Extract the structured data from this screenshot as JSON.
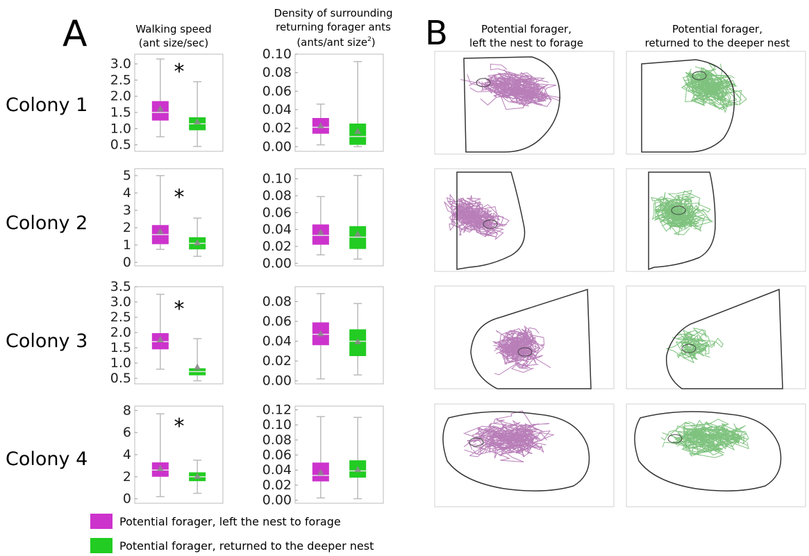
{
  "panel_labels": {
    "a": "A",
    "b": "B"
  },
  "column_titles": {
    "walking_speed": [
      "Walking speed",
      "(ant size/sec)"
    ],
    "density": [
      "Density of surrounding",
      "returning forager ants",
      "(ants/ant size",
      "2",
      ")"
    ],
    "traj_left": [
      "Potential forager,",
      "left the nest to forage"
    ],
    "traj_returned": [
      "Potential forager,",
      "returned to the deeper nest"
    ]
  },
  "colony_labels": [
    "Colony 1",
    "Colony 2",
    "Colony 3",
    "Colony 4"
  ],
  "significance_marker": "*",
  "legend": [
    {
      "label": "Potential forager, left the nest to forage",
      "color": "#cc33cc"
    },
    {
      "label": "Potential forager, returned to the deeper nest",
      "color": "#22cc22"
    }
  ],
  "colors": {
    "left": "#cc33cc",
    "returned": "#22cc22",
    "left_traj": "#8a2a8a",
    "returned_traj": "#2a9a2a",
    "mean_marker": "#888888"
  },
  "chart_data": [
    {
      "type": "box",
      "colony": "Colony 1",
      "metric": "walking_speed",
      "ylim": [
        0.3,
        3.3
      ],
      "yticks": [
        "0.5",
        "1.0",
        "1.5",
        "2.0",
        "2.5",
        "3.0"
      ],
      "significant": true,
      "groups": [
        {
          "name": "Potential forager, left the nest to forage",
          "min": 0.75,
          "q1": 1.25,
          "median": 1.5,
          "q3": 1.85,
          "max": 3.15,
          "mean": 1.6
        },
        {
          "name": "Potential forager, returned to the deeper nest",
          "min": 0.45,
          "q1": 0.95,
          "median": 1.15,
          "q3": 1.35,
          "max": 2.45,
          "mean": 1.2
        }
      ]
    },
    {
      "type": "box",
      "colony": "Colony 1",
      "metric": "density",
      "ylim": [
        -0.005,
        0.1
      ],
      "yticks": [
        "0.00",
        "0.02",
        "0.04",
        "0.06",
        "0.08",
        "0.10"
      ],
      "significant": false,
      "groups": [
        {
          "name": "Potential forager, left the nest to forage",
          "min": 0.002,
          "q1": 0.014,
          "median": 0.021,
          "q3": 0.031,
          "max": 0.046,
          "mean": 0.022
        },
        {
          "name": "Potential forager, returned to the deeper nest",
          "min": 0.0,
          "q1": 0.002,
          "median": 0.011,
          "q3": 0.025,
          "max": 0.092,
          "mean": 0.016
        }
      ]
    },
    {
      "type": "box",
      "colony": "Colony 2",
      "metric": "walking_speed",
      "ylim": [
        -0.2,
        5.4
      ],
      "yticks": [
        "0",
        "1",
        "2",
        "3",
        "4",
        "5"
      ],
      "significant": true,
      "groups": [
        {
          "name": "Potential forager, left the nest to forage",
          "min": 0.75,
          "q1": 1.05,
          "median": 1.6,
          "q3": 2.15,
          "max": 5.0,
          "mean": 1.75
        },
        {
          "name": "Potential forager, returned to the deeper nest",
          "min": 0.35,
          "q1": 0.75,
          "median": 1.1,
          "q3": 1.45,
          "max": 2.55,
          "mean": 1.1
        }
      ]
    },
    {
      "type": "box",
      "colony": "Colony 2",
      "metric": "density",
      "ylim": [
        -0.003,
        0.112
      ],
      "yticks": [
        "0.00",
        "0.02",
        "0.04",
        "0.06",
        "0.08",
        "0.10"
      ],
      "significant": false,
      "groups": [
        {
          "name": "Potential forager, left the nest to forage",
          "min": 0.01,
          "q1": 0.022,
          "median": 0.033,
          "q3": 0.046,
          "max": 0.079,
          "mean": 0.036
        },
        {
          "name": "Potential forager, returned to the deeper nest",
          "min": 0.005,
          "q1": 0.017,
          "median": 0.031,
          "q3": 0.044,
          "max": 0.104,
          "mean": 0.034
        }
      ]
    },
    {
      "type": "box",
      "colony": "Colony 3",
      "metric": "walking_speed",
      "ylim": [
        0.32,
        3.5
      ],
      "yticks": [
        "0.5",
        "1.0",
        "1.5",
        "2.0",
        "2.5",
        "3.0",
        "3.5"
      ],
      "significant": true,
      "groups": [
        {
          "name": "Potential forager, left the nest to forage",
          "min": 0.8,
          "q1": 1.45,
          "median": 1.7,
          "q3": 1.98,
          "max": 3.25,
          "mean": 1.75
        },
        {
          "name": "Potential forager, returned to the deeper nest",
          "min": 0.42,
          "q1": 0.6,
          "median": 0.72,
          "q3": 0.83,
          "max": 1.8,
          "mean": 0.85
        }
      ]
    },
    {
      "type": "box",
      "colony": "Colony 3",
      "metric": "density",
      "ylim": [
        -0.003,
        0.095
      ],
      "yticks": [
        "0.00",
        "0.02",
        "0.04",
        "0.06",
        "0.08"
      ],
      "significant": false,
      "groups": [
        {
          "name": "Potential forager, left the nest to forage",
          "min": 0.002,
          "q1": 0.036,
          "median": 0.047,
          "q3": 0.059,
          "max": 0.088,
          "mean": 0.047
        },
        {
          "name": "Potential forager, returned to the deeper nest",
          "min": 0.006,
          "q1": 0.025,
          "median": 0.04,
          "q3": 0.052,
          "max": 0.078,
          "mean": 0.039
        }
      ]
    },
    {
      "type": "box",
      "colony": "Colony 4",
      "metric": "walking_speed",
      "ylim": [
        -0.4,
        8.4
      ],
      "yticks": [
        "0",
        "2",
        "4",
        "6",
        "8"
      ],
      "significant": true,
      "groups": [
        {
          "name": "Potential forager, left the nest to forage",
          "min": 0.2,
          "q1": 2.0,
          "median": 2.6,
          "q3": 3.3,
          "max": 7.7,
          "mean": 2.7
        },
        {
          "name": "Potential forager, returned to the deeper nest",
          "min": 0.5,
          "q1": 1.6,
          "median": 2.0,
          "q3": 2.4,
          "max": 3.5,
          "mean": 2.0
        }
      ]
    },
    {
      "type": "box",
      "colony": "Colony 4",
      "metric": "density",
      "ylim": [
        -0.004,
        0.125
      ],
      "yticks": [
        "0.00",
        "0.02",
        "0.04",
        "0.06",
        "0.08",
        "0.10",
        "0.12"
      ],
      "significant": false,
      "groups": [
        {
          "name": "Potential forager, left the nest to forage",
          "min": 0.003,
          "q1": 0.025,
          "median": 0.033,
          "q3": 0.05,
          "max": 0.111,
          "mean": 0.036
        },
        {
          "name": "Potential forager, returned to the deeper nest",
          "min": 0.002,
          "q1": 0.03,
          "median": 0.039,
          "q3": 0.053,
          "max": 0.11,
          "mean": 0.04
        }
      ]
    }
  ]
}
